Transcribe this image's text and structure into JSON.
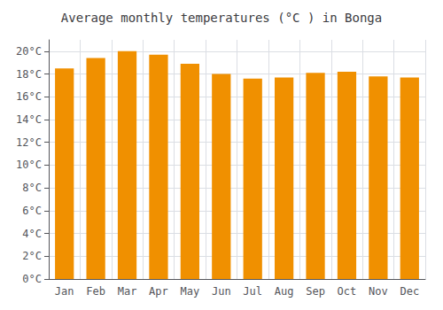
{
  "chart_data": {
    "type": "bar",
    "title": "Average monthly temperatures (°C ) in Bonga",
    "categories": [
      "Jan",
      "Feb",
      "Mar",
      "Apr",
      "May",
      "Jun",
      "Jul",
      "Aug",
      "Sep",
      "Oct",
      "Nov",
      "Dec"
    ],
    "values": [
      18.5,
      19.4,
      20.0,
      19.7,
      18.9,
      18.0,
      17.6,
      17.7,
      18.1,
      18.2,
      17.8,
      17.7
    ],
    "color": "#F09000",
    "ylim": [
      0,
      21
    ],
    "yticks": [
      {
        "value": 0,
        "label": "0°C"
      },
      {
        "value": 2,
        "label": "2°C"
      },
      {
        "value": 4,
        "label": "4°C"
      },
      {
        "value": 6,
        "label": "6°C"
      },
      {
        "value": 8,
        "label": "8°C"
      },
      {
        "value": 10,
        "label": "10°C"
      },
      {
        "value": 12,
        "label": "12°C"
      },
      {
        "value": 14,
        "label": "14°C"
      },
      {
        "value": 16,
        "label": "16°C"
      },
      {
        "value": 18,
        "label": "18°C"
      },
      {
        "value": 20,
        "label": "20°C"
      }
    ],
    "grid": true
  }
}
